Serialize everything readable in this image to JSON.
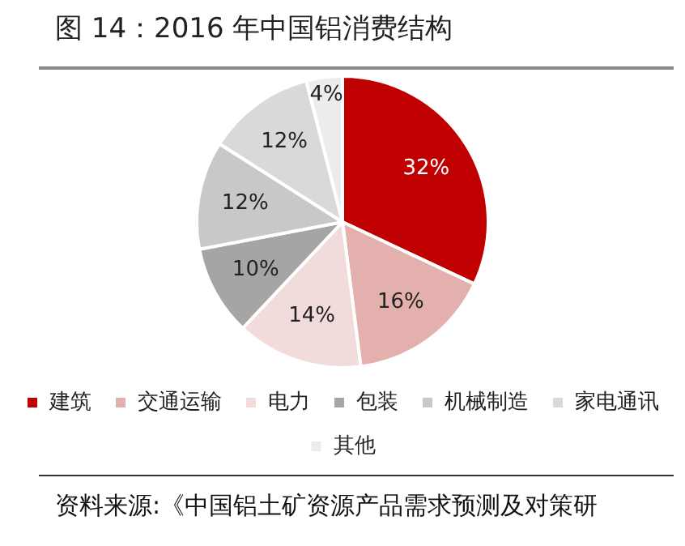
{
  "chart_data": {
    "type": "pie",
    "title": "图 14：2016 年中国铝消费结构",
    "categories": [
      "建筑",
      "交通运输",
      "电力",
      "包装",
      "机械制造",
      "家电通讯",
      "其他"
    ],
    "values": [
      32,
      16,
      14,
      10,
      12,
      12,
      4
    ],
    "value_labels": [
      "32%",
      "16%",
      "14%",
      "10%",
      "12%",
      "12%",
      "4%"
    ],
    "colors": [
      "#c00000",
      "#e4b0ae",
      "#f2dcdb",
      "#a5a5a5",
      "#c8c8c8",
      "#d9d9d9",
      "#ececec"
    ],
    "legend": "bottom",
    "annotations": [
      "资料来源:《中国铝土矿资源产品需求预测及对策研"
    ]
  }
}
